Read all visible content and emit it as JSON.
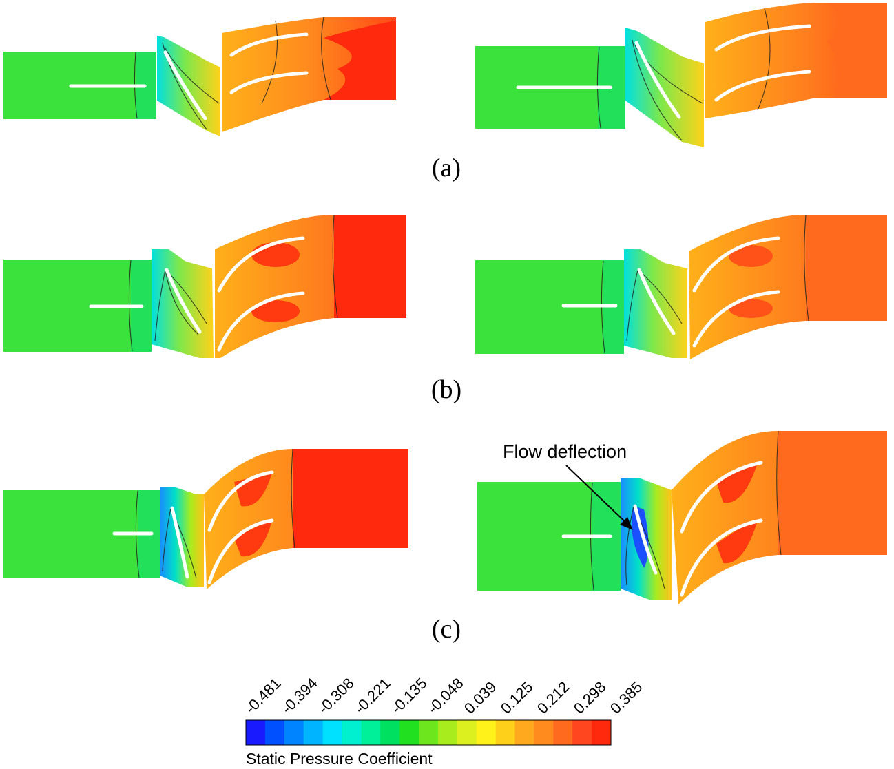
{
  "figure": {
    "panel_labels": [
      "(a)",
      "(b)",
      "(c)"
    ],
    "annotation": "Flow deflection",
    "colorbar": {
      "title": "Static Pressure Coefficient",
      "ticks": [
        "-0.481",
        "-0.394",
        "-0.308",
        "-0.221",
        "-0.135",
        "-0.048",
        "0.039",
        "0.125",
        "0.212",
        "0.298",
        "0.385"
      ],
      "colors": [
        "#1a1aff",
        "#0050ff",
        "#0084ff",
        "#00b4ff",
        "#00e0ff",
        "#00f0d0",
        "#00f09a",
        "#00e060",
        "#20e020",
        "#6ee61e",
        "#a8ec1e",
        "#dcf020",
        "#fff21a",
        "#ffd01a",
        "#ffaa1e",
        "#ff8a1e",
        "#ff6a1e",
        "#ff461e",
        "#ff2a0e"
      ]
    },
    "region_colors": {
      "inlet": "#3ce23c",
      "inlet_strip": "#22e05a",
      "row_a": "#ff8a1e",
      "outlet_red": "#ff2a0e",
      "outlet_orange": "#ff6a1e",
      "stator_yellow": "#ffd21a"
    }
  }
}
